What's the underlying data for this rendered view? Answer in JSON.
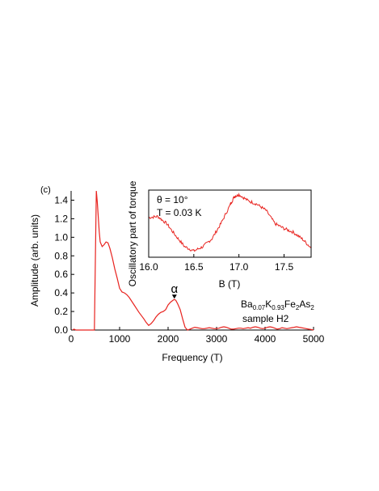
{
  "figure": {
    "panel_label": "(c)",
    "compound": {
      "base1": "Ba",
      "sub1": "0.07",
      "base2": "K",
      "sub2": "0.93",
      "base3": "Fe",
      "sub3": "2",
      "base4": "As",
      "sub4": "2"
    },
    "sample": "sample H2",
    "peak_label": "α",
    "line_color": "#e8231f"
  },
  "chart_data": [
    {
      "type": "line",
      "role": "main",
      "xlabel": "Frequency (T)",
      "ylabel": "Amplitude (arb. units)",
      "xlim": [
        0,
        5000
      ],
      "ylim": [
        0,
        1.5
      ],
      "xticks": [
        0,
        1000,
        2000,
        3000,
        4000,
        5000
      ],
      "yticks": [
        0.0,
        0.2,
        0.4,
        0.6,
        0.8,
        1.0,
        1.2,
        1.4
      ],
      "ytick_labels": [
        "0.0",
        "0.2",
        "0.4",
        "0.6",
        "0.8",
        "1.0",
        "1.2",
        "1.4"
      ],
      "annotation": {
        "text": "α",
        "x": 2130,
        "y": 0.33
      },
      "series": [
        {
          "x": [
            30,
            60,
            100,
            150,
            200,
            260,
            320,
            400,
            480,
            520,
            540,
            560,
            580,
            600,
            640,
            680,
            720,
            760,
            800,
            850,
            900,
            950,
            1000,
            1050,
            1100,
            1150,
            1200,
            1300,
            1400,
            1500,
            1550,
            1600,
            1650,
            1700,
            1750,
            1800,
            1850,
            1900,
            1950,
            2000,
            2050,
            2100,
            2130,
            2160,
            2200,
            2250,
            2300,
            2350,
            2400,
            2450,
            2500,
            2550,
            2600,
            2650,
            2700,
            2750,
            2800,
            2850,
            2900,
            2950,
            3000,
            3050,
            3100,
            3150,
            3200,
            3250,
            3300,
            3350,
            3400,
            3450,
            3500,
            3550,
            3600,
            3650,
            3700,
            3750,
            3800,
            3850,
            3900,
            3950,
            4000,
            4050,
            4100,
            4150,
            4200,
            4250,
            4300,
            4350,
            4400,
            4450,
            4500,
            4550,
            4600,
            4650,
            4700,
            4750,
            4800,
            4850,
            4900,
            4950,
            5000
          ],
          "y": [
            0.0,
            0.01,
            0.0,
            0.0,
            0.0,
            0.0,
            0.0,
            0.0,
            0.0,
            1.5,
            1.38,
            1.22,
            1.06,
            0.95,
            0.9,
            0.92,
            0.95,
            0.94,
            0.88,
            0.78,
            0.66,
            0.56,
            0.45,
            0.41,
            0.4,
            0.38,
            0.35,
            0.27,
            0.19,
            0.12,
            0.08,
            0.05,
            0.07,
            0.1,
            0.14,
            0.17,
            0.19,
            0.2,
            0.22,
            0.27,
            0.3,
            0.32,
            0.33,
            0.32,
            0.28,
            0.22,
            0.12,
            0.03,
            0.0,
            0.01,
            0.02,
            0.03,
            0.025,
            0.02,
            0.015,
            0.015,
            0.02,
            0.025,
            0.02,
            0.015,
            0.015,
            0.02,
            0.03,
            0.035,
            0.03,
            0.02,
            0.01,
            0.01,
            0.015,
            0.02,
            0.02,
            0.015,
            0.02,
            0.025,
            0.02,
            0.03,
            0.035,
            0.03,
            0.02,
            0.015,
            0.02,
            0.03,
            0.035,
            0.03,
            0.02,
            0.01,
            0.015,
            0.025,
            0.02,
            0.015,
            0.02,
            0.025,
            0.03,
            0.035,
            0.03,
            0.025,
            0.02,
            0.015,
            0.01,
            0.005,
            0.0
          ]
        }
      ]
    },
    {
      "type": "line",
      "role": "inset",
      "xlabel": "B (T)",
      "ylabel": "Oscillatory part of torque",
      "xlim": [
        16.0,
        17.8
      ],
      "xticks": [
        16.0,
        16.5,
        17.0,
        17.5
      ],
      "xtick_labels": [
        "16.0",
        "16.5",
        "17.0",
        "17.5"
      ],
      "annotations": [
        "θ = 10°",
        "T = 0.03 K"
      ],
      "series": [
        {
          "x": [
            16.0,
            16.1,
            16.2,
            16.3,
            16.4,
            16.5,
            16.6,
            16.7,
            16.8,
            16.9,
            16.95,
            17.0,
            17.1,
            17.2,
            17.3,
            17.4,
            17.5,
            17.6,
            17.7,
            17.8
          ],
          "y": [
            0.6,
            0.62,
            0.5,
            0.3,
            0.12,
            0.05,
            0.12,
            0.25,
            0.5,
            0.8,
            0.95,
            0.98,
            0.88,
            0.82,
            0.72,
            0.5,
            0.42,
            0.36,
            0.25,
            0.1
          ]
        }
      ]
    }
  ]
}
